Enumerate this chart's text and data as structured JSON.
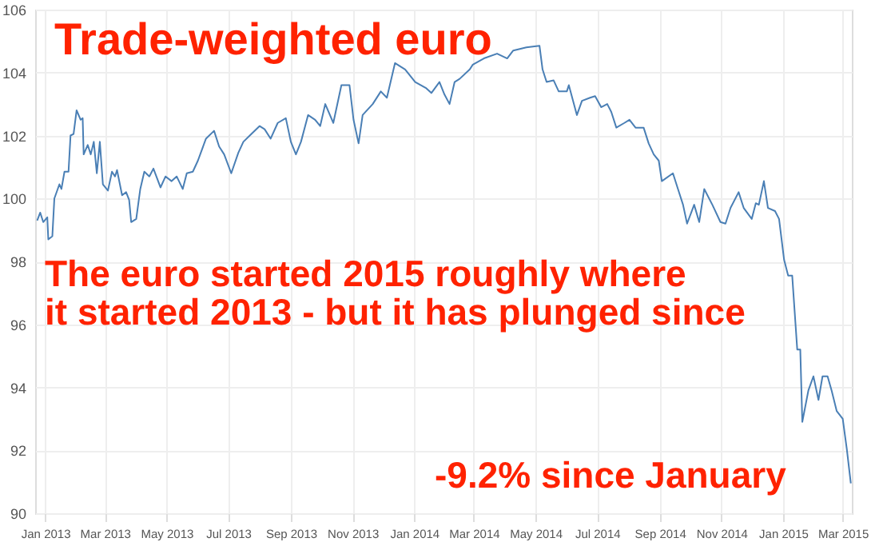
{
  "chart_data": {
    "type": "line",
    "title": "Trade-weighted euro",
    "x": [
      "2012-12-24",
      "2012-12-27",
      "2012-12-30",
      "2013-01-03",
      "2013-01-04",
      "2013-01-08",
      "2013-01-10",
      "2013-01-15",
      "2013-01-17",
      "2013-01-20",
      "2013-01-24",
      "2013-01-26",
      "2013-01-29",
      "2013-02-01",
      "2013-02-05",
      "2013-02-07",
      "2013-02-08",
      "2013-02-12",
      "2013-02-15",
      "2013-02-18",
      "2013-02-21",
      "2013-02-24",
      "2013-02-27",
      "2013-03-04",
      "2013-03-08",
      "2013-03-11",
      "2013-03-13",
      "2013-03-18",
      "2013-03-22",
      "2013-03-25",
      "2013-03-27",
      "2013-04-01",
      "2013-04-05",
      "2013-04-09",
      "2013-04-14",
      "2013-04-18",
      "2013-04-25",
      "2013-04-30",
      "2013-05-06",
      "2013-05-11",
      "2013-05-17",
      "2013-05-21",
      "2013-05-27",
      "2013-06-01",
      "2013-06-09",
      "2013-06-17",
      "2013-06-22",
      "2013-06-27",
      "2013-07-04",
      "2013-07-11",
      "2013-07-16",
      "2013-07-24",
      "2013-08-01",
      "2013-08-06",
      "2013-08-12",
      "2013-08-19",
      "2013-08-27",
      "2013-09-01",
      "2013-09-06",
      "2013-09-11",
      "2013-09-18",
      "2013-09-25",
      "2013-09-30",
      "2013-10-05",
      "2013-10-13",
      "2013-10-21",
      "2013-10-29",
      "2013-11-02",
      "2013-11-07",
      "2013-11-11",
      "2013-11-21",
      "2013-11-29",
      "2013-12-05",
      "2013-12-13",
      "2013-12-23",
      "2014-01-02",
      "2014-01-13",
      "2014-01-18",
      "2014-01-26",
      "2014-01-31",
      "2014-02-05",
      "2014-02-10",
      "2014-02-15",
      "2014-02-25",
      "2014-02-28",
      "2014-03-11",
      "2014-03-24",
      "2014-04-03",
      "2014-04-09",
      "2014-04-22",
      "2014-05-05",
      "2014-05-08",
      "2014-05-12",
      "2014-05-19",
      "2014-05-24",
      "2014-06-01",
      "2014-06-03",
      "2014-06-11",
      "2014-06-16",
      "2014-06-24",
      "2014-06-29",
      "2014-07-05",
      "2014-07-11",
      "2014-07-15",
      "2014-07-20",
      "2014-07-28",
      "2014-08-02",
      "2014-08-08",
      "2014-08-16",
      "2014-08-21",
      "2014-08-26",
      "2014-08-31",
      "2014-09-03",
      "2014-09-14",
      "2014-09-19",
      "2014-09-24",
      "2014-09-28",
      "2014-10-05",
      "2014-10-10",
      "2014-10-15",
      "2014-10-23",
      "2014-10-31",
      "2014-11-05",
      "2014-11-10",
      "2014-11-18",
      "2014-11-23",
      "2014-12-01",
      "2014-12-05",
      "2014-12-08",
      "2014-12-13",
      "2014-12-17",
      "2014-12-24",
      "2014-12-28",
      "2015-01-02",
      "2015-01-06",
      "2015-01-10",
      "2015-01-15",
      "2015-01-18",
      "2015-01-20",
      "2015-01-26",
      "2015-01-31",
      "2015-02-05",
      "2015-02-09",
      "2015-02-14",
      "2015-02-18",
      "2015-02-23",
      "2015-03-01",
      "2015-03-05",
      "2015-03-09"
    ],
    "series": [
      {
        "color": "#4a7fb5",
        "values": [
          99.3,
          99.55,
          99.25,
          99.4,
          98.7,
          98.8,
          100.0,
          100.45,
          100.3,
          100.85,
          100.85,
          102.0,
          102.05,
          102.8,
          102.5,
          102.55,
          101.4,
          101.7,
          101.4,
          101.8,
          100.8,
          101.8,
          100.45,
          100.25,
          100.85,
          100.7,
          100.9,
          100.1,
          100.2,
          99.95,
          99.25,
          99.35,
          100.3,
          100.85,
          100.7,
          100.95,
          100.35,
          100.7,
          100.55,
          100.7,
          100.3,
          100.8,
          100.85,
          101.2,
          101.9,
          102.15,
          101.65,
          101.4,
          100.8,
          101.45,
          101.8,
          102.05,
          102.3,
          102.2,
          101.9,
          102.4,
          102.55,
          101.8,
          101.4,
          101.8,
          102.65,
          102.5,
          102.3,
          103.0,
          102.4,
          103.6,
          103.6,
          102.5,
          101.75,
          102.65,
          103.0,
          103.4,
          103.2,
          104.3,
          104.1,
          103.7,
          103.5,
          103.35,
          103.7,
          103.3,
          103.0,
          103.7,
          103.8,
          104.1,
          104.25,
          104.45,
          104.6,
          104.45,
          104.7,
          104.8,
          104.85,
          104.1,
          103.7,
          103.75,
          103.4,
          103.4,
          103.6,
          102.65,
          103.1,
          103.2,
          103.25,
          102.9,
          103.0,
          102.75,
          102.25,
          102.4,
          102.5,
          102.25,
          102.25,
          101.75,
          101.4,
          101.2,
          100.55,
          100.8,
          100.3,
          99.8,
          99.2,
          99.8,
          99.25,
          100.3,
          99.8,
          99.25,
          99.2,
          99.7,
          100.2,
          99.7,
          99.35,
          99.85,
          99.8,
          100.55,
          99.7,
          99.6,
          99.35,
          98.05,
          97.55,
          97.55,
          95.2,
          95.2,
          92.9,
          93.9,
          94.35,
          93.6,
          94.35,
          94.35,
          93.9,
          93.25,
          93.0,
          92.05,
          90.95
        ]
      }
    ],
    "xlim": [
      "2012-12-22",
      "2015-03-10"
    ],
    "xticks": [
      {
        "value": "2013-01-01",
        "label": "Jan 2013"
      },
      {
        "value": "2013-03-01",
        "label": "Mar 2013"
      },
      {
        "value": "2013-05-01",
        "label": "May 2013"
      },
      {
        "value": "2013-07-01",
        "label": "Jul 2013"
      },
      {
        "value": "2013-09-01",
        "label": "Sep 2013"
      },
      {
        "value": "2013-11-01",
        "label": "Nov 2013"
      },
      {
        "value": "2014-01-01",
        "label": "Jan 2014"
      },
      {
        "value": "2014-03-01",
        "label": "Mar 2014"
      },
      {
        "value": "2014-05-01",
        "label": "May 2014"
      },
      {
        "value": "2014-07-01",
        "label": "Jul 2014"
      },
      {
        "value": "2014-09-01",
        "label": "Sep 2014"
      },
      {
        "value": "2014-11-01",
        "label": "Nov 2014"
      },
      {
        "value": "2015-01-01",
        "label": "Jan 2015"
      },
      {
        "value": "2015-03-01",
        "label": "Mar 2015"
      }
    ],
    "ylim": [
      90,
      106
    ],
    "yticks": [
      90,
      92,
      94,
      96,
      98,
      100,
      102,
      104,
      106
    ],
    "grid": true,
    "line_style": "solid",
    "annotations": [
      "The euro started 2015 roughly where\nit started 2013 - but it has plunged since",
      "-9.2% since January"
    ]
  }
}
